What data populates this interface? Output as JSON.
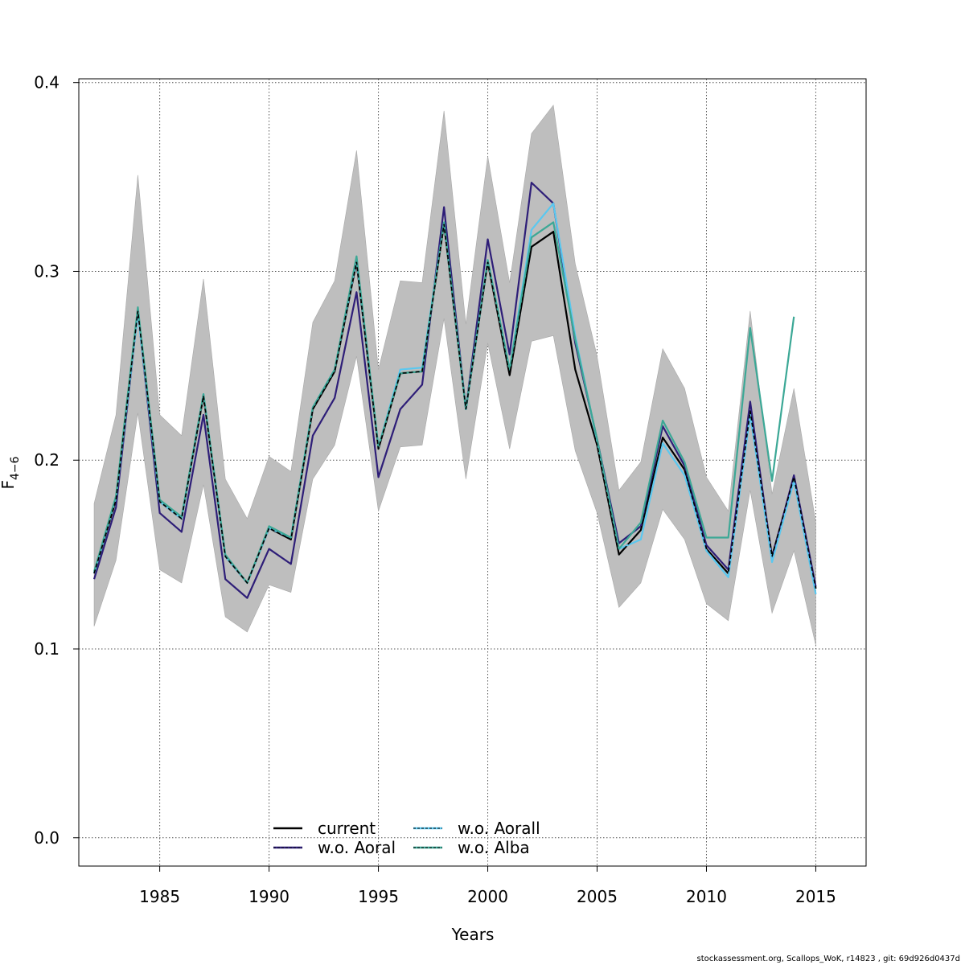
{
  "chart_data": {
    "type": "line",
    "title": "",
    "xlabel": "Years",
    "ylabel_main": "F",
    "ylabel_sub": "4−6",
    "xlim": [
      1981.3,
      2017.3
    ],
    "ylim": [
      -0.015,
      0.402
    ],
    "x_ticks": [
      "1985",
      "1990",
      "1995",
      "2000",
      "2005",
      "2010",
      "2015"
    ],
    "y_ticks": [
      "0.0",
      "0.1",
      "0.2",
      "0.3",
      "0.4"
    ],
    "grid": true,
    "legend_position": "bottom-center",
    "colors": {
      "band": "#bebebe",
      "current": "#000000",
      "wo_aoral": "#2e1e78",
      "wo_aorall": "#5ac8f0",
      "wo_alba": "#3ca896",
      "grid": "#555555"
    },
    "band": {
      "x": [
        1982,
        1983,
        1984,
        1985,
        1986,
        1987,
        1988,
        1989,
        1990,
        1991,
        1992,
        1993,
        1994,
        1995,
        1996,
        1997,
        1998,
        1999,
        2000,
        2001,
        2002,
        2003,
        2004,
        2005,
        2006,
        2007,
        2008,
        2009,
        2010,
        2011,
        2012,
        2013,
        2014,
        2015
      ],
      "upper": [
        0.177,
        0.224,
        0.351,
        0.224,
        0.213,
        0.296,
        0.19,
        0.169,
        0.202,
        0.194,
        0.273,
        0.295,
        0.364,
        0.248,
        0.295,
        0.294,
        0.385,
        0.272,
        0.361,
        0.294,
        0.373,
        0.388,
        0.304,
        0.255,
        0.184,
        0.199,
        0.259,
        0.238,
        0.191,
        0.173,
        0.279,
        0.182,
        0.238,
        0.167
      ],
      "lower": [
        0.112,
        0.147,
        0.225,
        0.142,
        0.135,
        0.187,
        0.117,
        0.109,
        0.134,
        0.13,
        0.19,
        0.208,
        0.255,
        0.173,
        0.207,
        0.208,
        0.275,
        0.19,
        0.262,
        0.206,
        0.263,
        0.266,
        0.205,
        0.172,
        0.122,
        0.135,
        0.174,
        0.158,
        0.124,
        0.115,
        0.184,
        0.119,
        0.152,
        0.102
      ]
    },
    "series": [
      {
        "name": "current",
        "x": [
          1982,
          1983,
          1984,
          1985,
          1986,
          1987,
          1988,
          1989,
          1990,
          1991,
          1992,
          1993,
          1994,
          1995,
          1996,
          1997,
          1998,
          1999,
          2000,
          2001,
          2002,
          2003,
          2004,
          2005,
          2006,
          2007,
          2008,
          2009,
          2010,
          2011,
          2012,
          2013,
          2014,
          2015
        ],
        "values": [
          0.14,
          0.179,
          0.279,
          0.178,
          0.169,
          0.234,
          0.149,
          0.135,
          0.164,
          0.158,
          0.227,
          0.247,
          0.305,
          0.206,
          0.246,
          0.247,
          0.325,
          0.227,
          0.305,
          0.245,
          0.313,
          0.321,
          0.248,
          0.208,
          0.15,
          0.163,
          0.212,
          0.195,
          0.153,
          0.14,
          0.226,
          0.149,
          0.191,
          0.132
        ]
      },
      {
        "name": "w.o. Aoral",
        "x": [
          1982,
          1983,
          1984,
          1985,
          1986,
          1987,
          1988,
          1989,
          1990,
          1991,
          1992,
          1993,
          1994,
          1995,
          1996,
          1997,
          1998,
          1999,
          2000,
          2001,
          2002,
          2003,
          2004,
          2005,
          2006,
          2007,
          2008,
          2009,
          2010,
          2011,
          2012,
          2013,
          2014,
          2015
        ],
        "values": [
          0.137,
          0.175,
          0.279,
          0.172,
          0.162,
          0.224,
          0.137,
          0.127,
          0.153,
          0.145,
          0.213,
          0.233,
          0.289,
          0.191,
          0.227,
          0.24,
          0.334,
          0.227,
          0.317,
          0.256,
          0.347,
          0.336,
          0.262,
          0.211,
          0.156,
          0.165,
          0.218,
          0.197,
          0.155,
          0.142,
          0.231,
          0.148,
          0.192,
          0.133
        ]
      },
      {
        "name": "w.o. Aorall",
        "x": [
          1982,
          1983,
          1984,
          1985,
          1986,
          1987,
          1988,
          1989,
          1990,
          1991,
          1992,
          1993,
          1994,
          1995,
          1996,
          1997,
          1998,
          1999,
          2000,
          2001,
          2002,
          2003,
          2004,
          2005,
          2006,
          2007,
          2008,
          2009,
          2010,
          2011,
          2012,
          2013,
          2014,
          2015
        ],
        "values": [
          0.14,
          0.18,
          0.278,
          0.178,
          0.169,
          0.235,
          0.149,
          0.135,
          0.164,
          0.159,
          0.228,
          0.248,
          0.306,
          0.207,
          0.248,
          0.249,
          0.326,
          0.227,
          0.306,
          0.248,
          0.322,
          0.336,
          0.266,
          0.21,
          0.153,
          0.158,
          0.209,
          0.192,
          0.152,
          0.138,
          0.224,
          0.146,
          0.189,
          0.129
        ]
      },
      {
        "name": "w.o. Alba",
        "x": [
          1982,
          1983,
          1984,
          1985,
          1986,
          1987,
          1988,
          1989,
          1990,
          1991,
          1992,
          1993,
          1994,
          1995,
          1996,
          1997,
          1998,
          1999,
          2000,
          2001,
          2002,
          2003,
          2004,
          2005,
          2006,
          2007,
          2008,
          2009,
          2010,
          2011,
          2012,
          2013,
          2014
        ],
        "values": [
          0.141,
          0.181,
          0.281,
          0.179,
          0.17,
          0.235,
          0.15,
          0.135,
          0.165,
          0.159,
          0.228,
          0.248,
          0.308,
          0.207,
          0.246,
          0.247,
          0.326,
          0.227,
          0.306,
          0.248,
          0.318,
          0.326,
          0.264,
          0.211,
          0.153,
          0.167,
          0.221,
          0.199,
          0.159,
          0.159,
          0.27,
          0.189,
          0.276
        ]
      }
    ]
  },
  "footer_text": "stockassessment.org, Scallops_WoK, r14823 , git: 69d926d0437d"
}
